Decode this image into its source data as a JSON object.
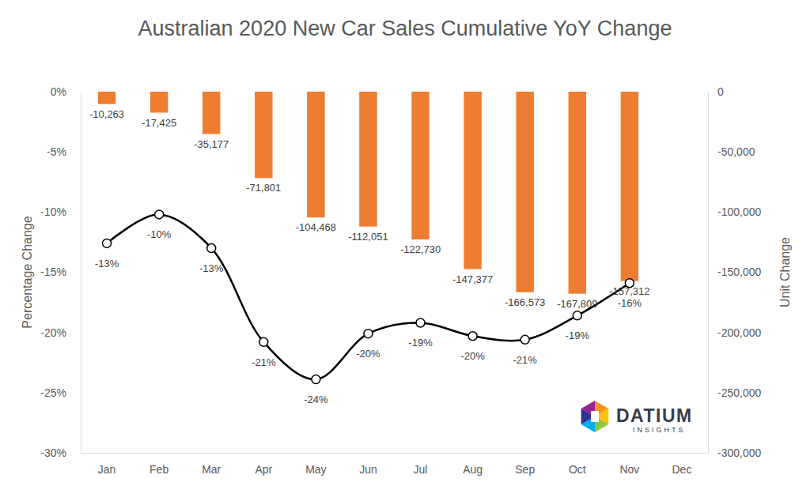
{
  "chart_data": {
    "type": "bar",
    "title": "Australian 2020 New Car Sales Cumulative YoY Change",
    "y_label": "Percentage Change",
    "y2_label": "Unit Change",
    "categories": [
      "Jan",
      "Feb",
      "Mar",
      "Apr",
      "May",
      "Jun",
      "Jul",
      "Aug",
      "Sep",
      "Oct",
      "Nov",
      "Dec"
    ],
    "series": [
      {
        "type": "bar",
        "axis": "y2",
        "color": "#ED7D31",
        "data_labels": true,
        "values": [
          -10263,
          -17425,
          -35177,
          -71801,
          -104468,
          -112051,
          -122730,
          -147377,
          -166573,
          -167809,
          -157312,
          null
        ],
        "value_labels": [
          "-10,263",
          "-17,425",
          "-35,177",
          "-71,801",
          "-104,468",
          "-112,051",
          "-122,730",
          "-147,377",
          "-166,573",
          "-167,809",
          "-157,312",
          null
        ]
      },
      {
        "type": "line",
        "axis": "y",
        "color": "#000000",
        "marker": "circle",
        "line_style": "smooth",
        "data_labels": true,
        "values": [
          -12.6,
          -10.2,
          -13.0,
          -20.8,
          -23.9,
          -20.1,
          -19.2,
          -20.3,
          -20.6,
          -18.6,
          -15.9,
          null
        ],
        "value_labels": [
          "-13%",
          "-10%",
          "-13%",
          "-21%",
          "-24%",
          "-20%",
          "-19%",
          "-20%",
          "-21%",
          "-19%",
          "-16%",
          null
        ]
      }
    ],
    "ylim": [
      -30,
      0
    ],
    "yticks": [
      {
        "value": -30,
        "label": "-30%"
      },
      {
        "value": -25,
        "label": "-25%"
      },
      {
        "value": -20,
        "label": "-20%"
      },
      {
        "value": -15,
        "label": "-15%"
      },
      {
        "value": -10,
        "label": "-10%"
      },
      {
        "value": -5,
        "label": "-5%"
      },
      {
        "value": 0,
        "label": "0%"
      }
    ],
    "y2lim": [
      -300000,
      0
    ],
    "y2ticks": [
      {
        "value": -300000,
        "label": "-300,000"
      },
      {
        "value": -250000,
        "label": "-250,000"
      },
      {
        "value": -200000,
        "label": "-200,000"
      },
      {
        "value": -150000,
        "label": "-150,000"
      },
      {
        "value": -100000,
        "label": "-100,000"
      },
      {
        "value": -50000,
        "label": "-50,000"
      },
      0
    ],
    "grid": false,
    "annotations": [
      "DATIUM",
      "INSIGHTS"
    ]
  }
}
